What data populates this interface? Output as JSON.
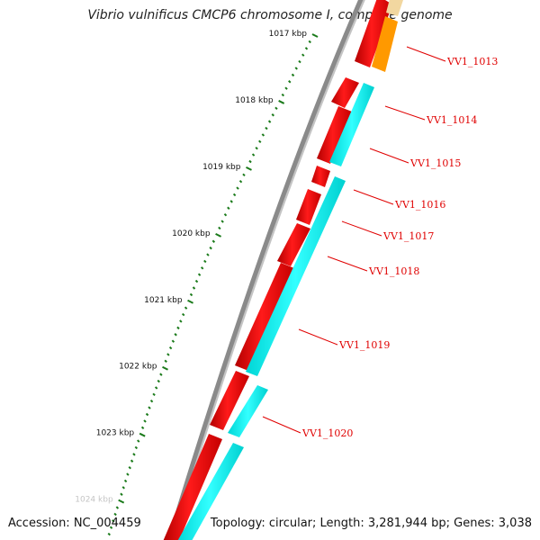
{
  "title": "Vibrio vulnificus CMCP6 chromosome I, complete genome",
  "footer": {
    "accession": "Accession: NC_004459",
    "summary": "Topology: circular; Length: 3,281,944 bp; Genes: 3,038"
  },
  "scale": {
    "labels": [
      "1017 kbp",
      "1018 kbp",
      "1019 kbp",
      "1020 kbp",
      "1021 kbp",
      "1022 kbp",
      "1023 kbp",
      "1024 kbp"
    ],
    "start_kbp": 1017,
    "end_kbp": 1024,
    "minor_tick_kbp": 0.1,
    "tick_color": "#1a7a1a"
  },
  "genes": [
    {
      "label": "VV1_1013"
    },
    {
      "label": "VV1_1014"
    },
    {
      "label": "VV1_1015"
    },
    {
      "label": "VV1_1016"
    },
    {
      "label": "VV1_1017"
    },
    {
      "label": "VV1_1018"
    },
    {
      "label": "VV1_1019"
    },
    {
      "label": "VV1_1020"
    }
  ],
  "colors": {
    "backbone": "#808080",
    "cds_forward": "#ff0000",
    "cds_reverse": "#ffa500",
    "rna_track": "#00ffff",
    "label": "#e00000"
  }
}
